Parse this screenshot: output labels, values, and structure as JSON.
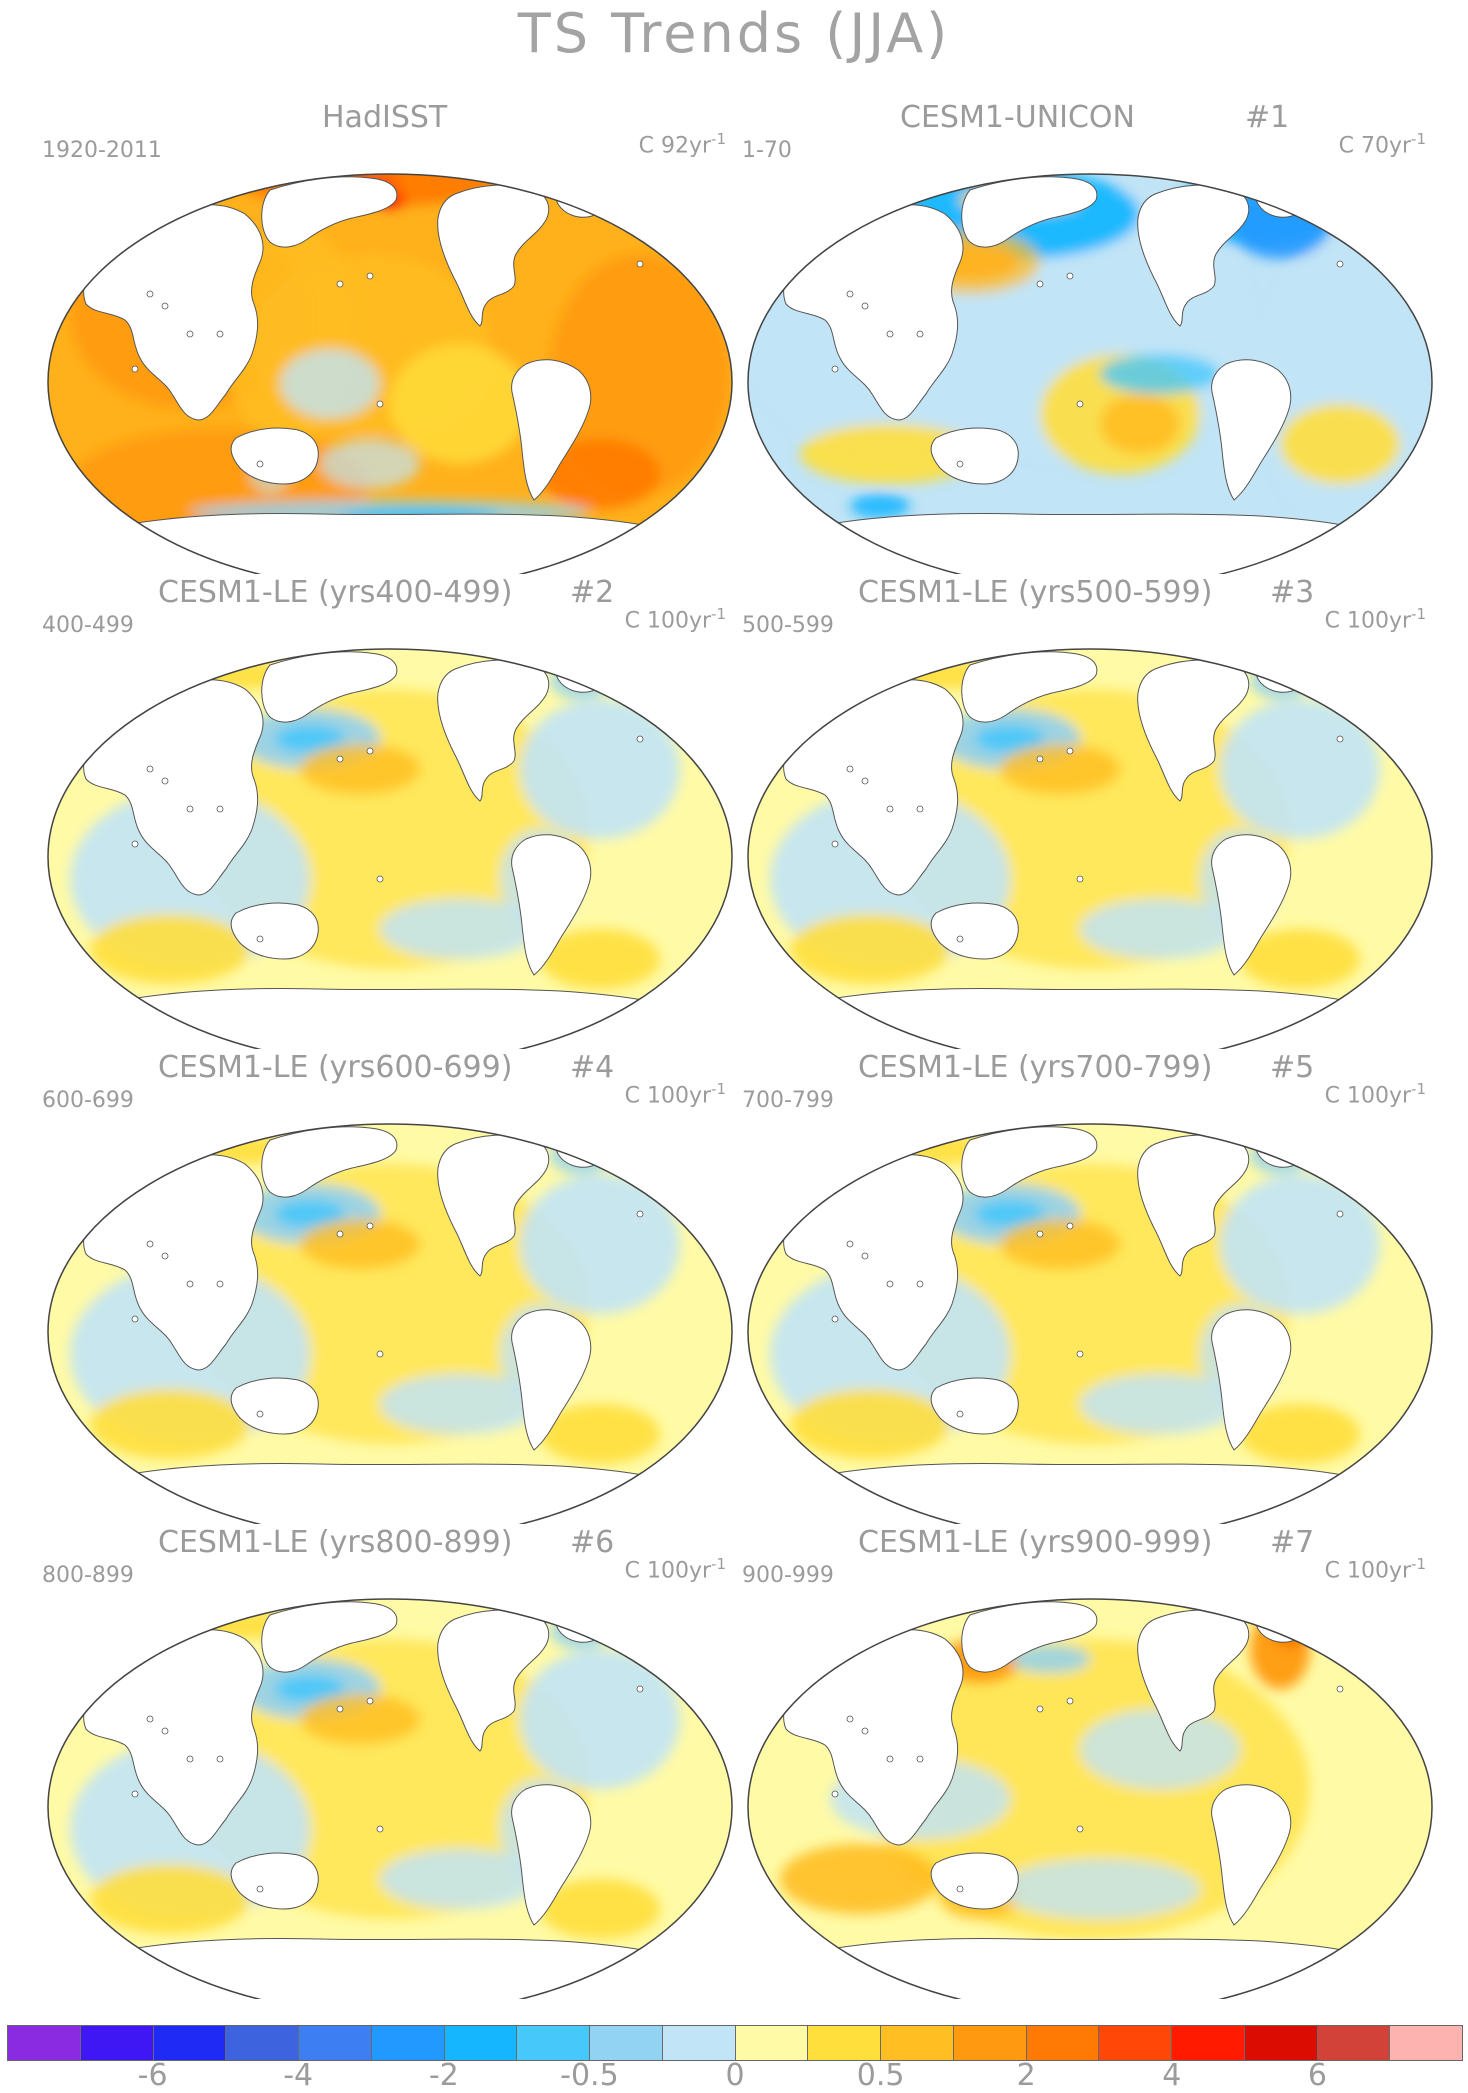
{
  "figure": {
    "title": "TS Trends (JJA)"
  },
  "panels": [
    {
      "name": "HadISST",
      "number": "",
      "years": "1920-2011",
      "units_prefix": "C 92yr",
      "units_exp": "-1",
      "theme": "warm"
    },
    {
      "name": "CESM1-UNICON",
      "number": "#1",
      "years": "1-70",
      "units_prefix": "C 70yr",
      "units_exp": "-1",
      "theme": "cool"
    },
    {
      "name": "CESM1-LE (yrs400-499)",
      "number": "#2",
      "years": "400-499",
      "units_prefix": "C 100yr",
      "units_exp": "-1",
      "theme": "mixed"
    },
    {
      "name": "CESM1-LE (yrs500-599)",
      "number": "#3",
      "years": "500-599",
      "units_prefix": "C 100yr",
      "units_exp": "-1",
      "theme": "mixed"
    },
    {
      "name": "CESM1-LE (yrs600-699)",
      "number": "#4",
      "years": "600-699",
      "units_prefix": "C 100yr",
      "units_exp": "-1",
      "theme": "mixed"
    },
    {
      "name": "CESM1-LE (yrs700-799)",
      "number": "#5",
      "years": "700-799",
      "units_prefix": "C 100yr",
      "units_exp": "-1",
      "theme": "mixed"
    },
    {
      "name": "CESM1-LE (yrs800-899)",
      "number": "#6",
      "years": "800-899",
      "units_prefix": "C 100yr",
      "units_exp": "-1",
      "theme": "mixed"
    },
    {
      "name": "CESM1-LE (yrs900-999)",
      "number": "#7",
      "years": "900-999",
      "units_prefix": "C 100yr",
      "units_exp": "-1",
      "theme": "warmish"
    }
  ],
  "colorbar": {
    "colors": [
      "#8a2be2",
      "#3f17f5",
      "#1f2bf5",
      "#3e63df",
      "#3d7ff2",
      "#2299ff",
      "#16b6ff",
      "#47c8fb",
      "#92d2f2",
      "#c1e4f6",
      "#fffaa6",
      "#ffdf3c",
      "#ffbe22",
      "#ff9a10",
      "#ff7a05",
      "#ff4808",
      "#ff1a00",
      "#db0d03",
      "#d24239",
      "#fdb3b0"
    ],
    "labels": [
      "-6",
      "-4",
      "-2",
      "-0.5",
      "0",
      "0.5",
      "2",
      "4",
      "6"
    ]
  }
}
